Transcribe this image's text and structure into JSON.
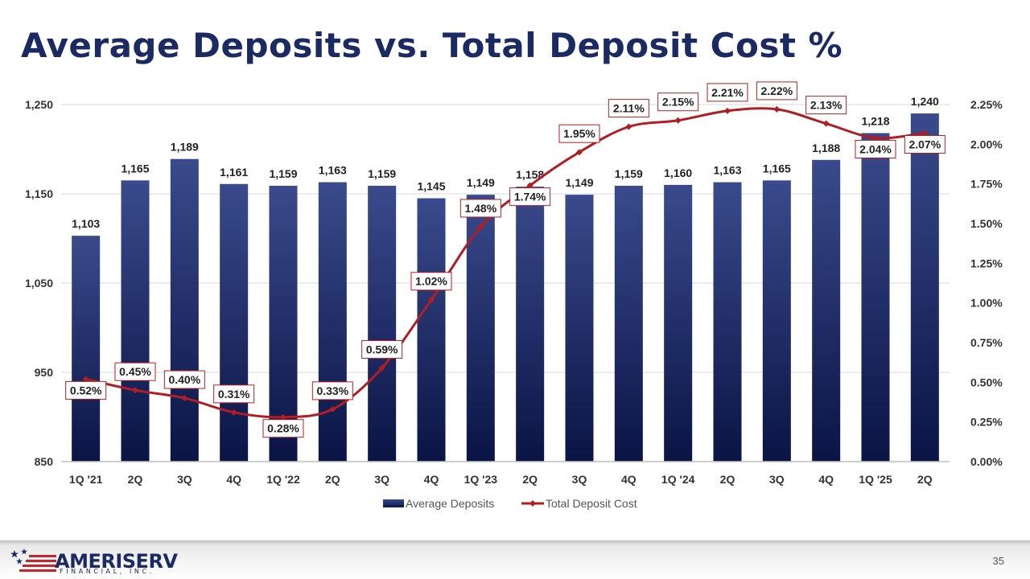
{
  "slide": {
    "title": "Average Deposits vs. Total Deposit Cost %",
    "page_number": "35"
  },
  "logo": {
    "name": "AMERISERV",
    "subtitle": "FINANCIAL, INC.",
    "colors": {
      "navy": "#1c2a64",
      "red": "#c0272d"
    }
  },
  "chart_data": {
    "type": "bar+line",
    "title": "",
    "categories": [
      "1Q '21",
      "2Q",
      "3Q",
      "4Q",
      "1Q '22",
      "2Q",
      "3Q",
      "4Q",
      "1Q '23",
      "2Q",
      "3Q",
      "4Q",
      "1Q '24",
      "2Q",
      "3Q",
      "4Q",
      "1Q '25",
      "2Q"
    ],
    "series": [
      {
        "name": "Average Deposits",
        "type": "bar",
        "axis": "left",
        "color": "#26346e",
        "values": [
          1103,
          1165,
          1189,
          1161,
          1159,
          1163,
          1159,
          1145,
          1149,
          1158,
          1149,
          1159,
          1160,
          1163,
          1165,
          1188,
          1218,
          1240
        ],
        "labels": [
          "1,103",
          "1,165",
          "1,189",
          "1,161",
          "1,159",
          "1,163",
          "1,159",
          "1,145",
          "1,149",
          "1,158",
          "1,149",
          "1,159",
          "1,160",
          "1,163",
          "1,165",
          "1,188",
          "1,218",
          "1,240"
        ]
      },
      {
        "name": "Total Deposit Cost",
        "type": "line",
        "axis": "right",
        "color": "#b01e23",
        "values": [
          0.52,
          0.45,
          0.4,
          0.31,
          0.28,
          0.33,
          0.59,
          1.02,
          1.48,
          1.74,
          1.95,
          2.11,
          2.15,
          2.21,
          2.22,
          2.13,
          2.04,
          2.07
        ],
        "labels": [
          "0.52%",
          "0.45%",
          "0.40%",
          "0.31%",
          "0.28%",
          "0.33%",
          "0.59%",
          "1.02%",
          "1.48%",
          "1.74%",
          "1.95%",
          "2.11%",
          "2.15%",
          "2.21%",
          "2.22%",
          "2.13%",
          "2.04%",
          "2.07%"
        ],
        "label_pos": [
          "below",
          "above",
          "above",
          "above",
          "below",
          "above",
          "above",
          "above",
          "above",
          "below",
          "above",
          "above",
          "above",
          "above",
          "above",
          "above",
          "below",
          "below"
        ]
      }
    ],
    "y_left": {
      "min": 850,
      "max": 1250,
      "ticks": [
        850,
        950,
        1050,
        1150,
        1250
      ],
      "tick_labels": [
        "850",
        "950",
        "1,050",
        "1,150",
        "1,250"
      ]
    },
    "y_right": {
      "min": 0,
      "max": 2.25,
      "ticks": [
        0,
        0.25,
        0.5,
        0.75,
        1.0,
        1.25,
        1.5,
        1.75,
        2.0,
        2.25
      ],
      "tick_labels": [
        "0.00%",
        "0.25%",
        "0.50%",
        "0.75%",
        "1.00%",
        "1.25%",
        "1.50%",
        "1.75%",
        "2.00%",
        "2.25%"
      ]
    },
    "grid": true,
    "legend": "bottom"
  }
}
